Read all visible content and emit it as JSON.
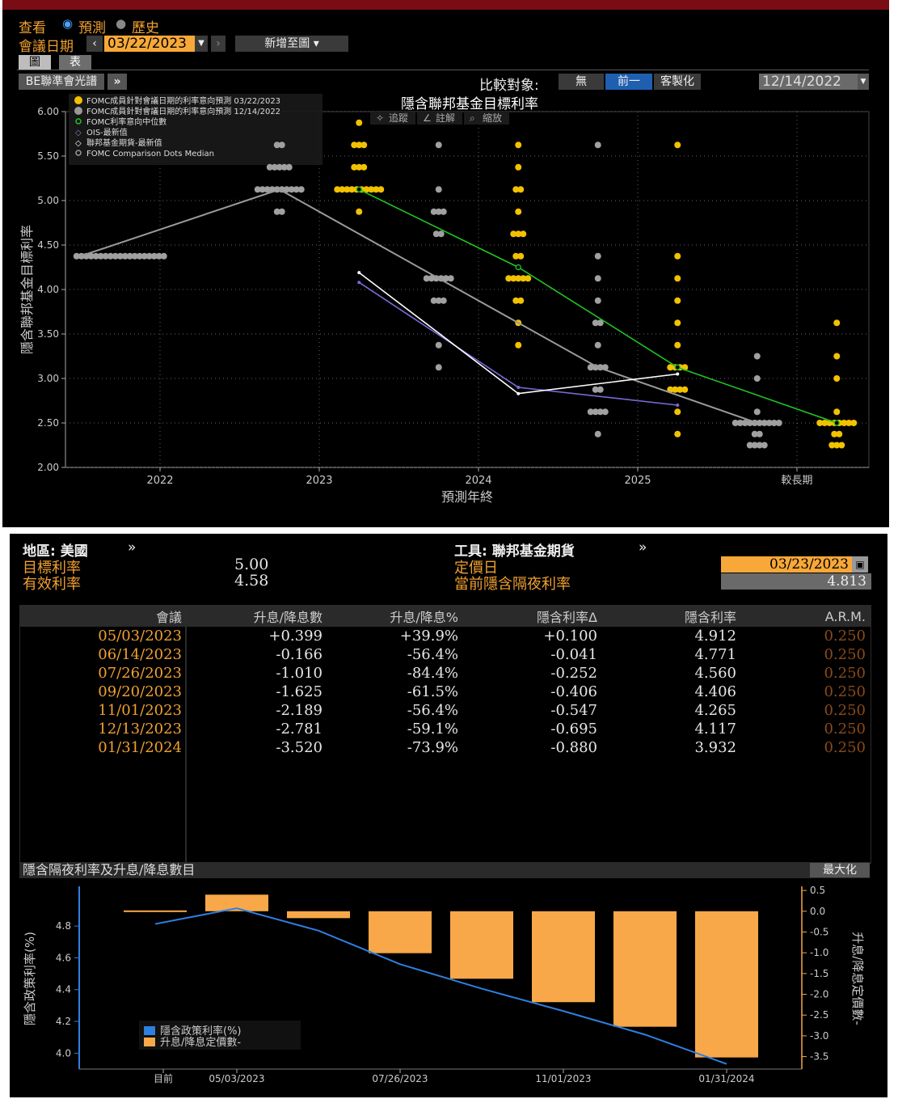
{
  "header": {
    "view_label": "查看",
    "mode_forecast": "預測",
    "mode_history": "歷史",
    "meeting_date_label": "會議日期",
    "meeting_date": "03/22/2023",
    "add_to_chart": "新增至圖",
    "tabs": [
      "圖",
      "表"
    ],
    "source_button": "BE聯準會光譜",
    "compare_label": "比較對象:",
    "compare_options": [
      "無",
      "前一",
      "客製化"
    ],
    "compare_selected": "前一",
    "compare_date": "12/14/2022",
    "toolbar": [
      "追蹤",
      "註解",
      "縮放"
    ]
  },
  "dot_chart": {
    "title": "隱含聯邦基金目標利率",
    "ylabel": "隱含聯邦基金目標利率",
    "xlabel": "預測年終",
    "legend": [
      {
        "label": "FOMC成員針對會議日期的利率意向預測 03/22/2023",
        "color": "#f2c200"
      },
      {
        "label": "FOMC成員針對會議日期的利率意向預測 12/14/2022",
        "color": "#999999"
      },
      {
        "label": "FOMC利率意向中位數",
        "color": "#22c322"
      },
      {
        "label": "OIS-最新值",
        "color": "#8a7ae0"
      },
      {
        "label": "聯邦基金期貨-最新值",
        "color": "#ffffff"
      },
      {
        "label": "FOMC Comparison Dots Median",
        "color": "#999999"
      }
    ]
  },
  "chart_data": [
    {
      "type": "scatter",
      "title": "隱含聯邦基金目標利率",
      "xlabel": "預測年終",
      "ylabel": "隱含聯邦基金目標利率",
      "x_ticks": [
        "2022",
        "2023",
        "2024",
        "2025",
        "較長期"
      ],
      "y_ticks": [
        "2.00",
        "2.50",
        "3.00",
        "3.50",
        "4.00",
        "4.50",
        "5.00",
        "5.50",
        "6.00"
      ],
      "ylim": [
        2.0,
        6.0
      ],
      "dots_03_22_2023": [
        {
          "x": "2023",
          "y": 5.875,
          "count": 1
        },
        {
          "x": "2023",
          "y": 5.625,
          "count": 3
        },
        {
          "x": "2023",
          "y": 5.375,
          "count": 3
        },
        {
          "x": "2023",
          "y": 5.125,
          "count": 10
        },
        {
          "x": "2023",
          "y": 4.875,
          "count": 1
        },
        {
          "x": "2024",
          "y": 5.625,
          "count": 1
        },
        {
          "x": "2024",
          "y": 5.375,
          "count": 1
        },
        {
          "x": "2024",
          "y": 5.125,
          "count": 2
        },
        {
          "x": "2024",
          "y": 4.875,
          "count": 1
        },
        {
          "x": "2024",
          "y": 4.625,
          "count": 3
        },
        {
          "x": "2024",
          "y": 4.375,
          "count": 2
        },
        {
          "x": "2024",
          "y": 4.125,
          "count": 5
        },
        {
          "x": "2024",
          "y": 3.875,
          "count": 2
        },
        {
          "x": "2024",
          "y": 3.625,
          "count": 1
        },
        {
          "x": "2024",
          "y": 3.375,
          "count": 1
        },
        {
          "x": "2025",
          "y": 5.625,
          "count": 1
        },
        {
          "x": "2025",
          "y": 4.375,
          "count": 1
        },
        {
          "x": "2025",
          "y": 4.125,
          "count": 1
        },
        {
          "x": "2025",
          "y": 3.875,
          "count": 1
        },
        {
          "x": "2025",
          "y": 3.625,
          "count": 1
        },
        {
          "x": "2025",
          "y": 3.375,
          "count": 1
        },
        {
          "x": "2025",
          "y": 3.125,
          "count": 4
        },
        {
          "x": "2025",
          "y": 2.875,
          "count": 4
        },
        {
          "x": "2025",
          "y": 2.625,
          "count": 1
        },
        {
          "x": "2025",
          "y": 2.375,
          "count": 1
        },
        {
          "x": "較長期",
          "y": 3.625,
          "count": 1
        },
        {
          "x": "較長期",
          "y": 3.25,
          "count": 1
        },
        {
          "x": "較長期",
          "y": 3.0,
          "count": 1
        },
        {
          "x": "較長期",
          "y": 2.625,
          "count": 1
        },
        {
          "x": "較長期",
          "y": 2.5,
          "count": 8
        },
        {
          "x": "較長期",
          "y": 2.375,
          "count": 2
        },
        {
          "x": "較長期",
          "y": 2.25,
          "count": 3
        }
      ],
      "dots_12_14_2022": [
        {
          "x": "2022",
          "y": 4.375,
          "count": 19
        },
        {
          "x": "2023",
          "y": 5.625,
          "count": 2
        },
        {
          "x": "2023",
          "y": 5.375,
          "count": 5
        },
        {
          "x": "2023",
          "y": 5.125,
          "count": 10
        },
        {
          "x": "2023",
          "y": 4.875,
          "count": 2
        },
        {
          "x": "2024",
          "y": 5.625,
          "count": 1
        },
        {
          "x": "2024",
          "y": 5.125,
          "count": 1
        },
        {
          "x": "2024",
          "y": 4.875,
          "count": 3
        },
        {
          "x": "2024",
          "y": 4.625,
          "count": 2
        },
        {
          "x": "2024",
          "y": 4.125,
          "count": 6
        },
        {
          "x": "2024",
          "y": 3.875,
          "count": 3
        },
        {
          "x": "2024",
          "y": 3.375,
          "count": 1
        },
        {
          "x": "2024",
          "y": 3.125,
          "count": 1
        },
        {
          "x": "2025",
          "y": 5.625,
          "count": 1
        },
        {
          "x": "2025",
          "y": 4.375,
          "count": 1
        },
        {
          "x": "2025",
          "y": 4.125,
          "count": 1
        },
        {
          "x": "2025",
          "y": 3.875,
          "count": 1
        },
        {
          "x": "2025",
          "y": 3.625,
          "count": 2
        },
        {
          "x": "2025",
          "y": 3.375,
          "count": 1
        },
        {
          "x": "2025",
          "y": 3.125,
          "count": 4
        },
        {
          "x": "2025",
          "y": 2.875,
          "count": 2
        },
        {
          "x": "2025",
          "y": 2.625,
          "count": 4
        },
        {
          "x": "2025",
          "y": 2.375,
          "count": 1
        },
        {
          "x": "較長期",
          "y": 3.25,
          "count": 1
        },
        {
          "x": "較長期",
          "y": 3.0,
          "count": 1
        },
        {
          "x": "較長期",
          "y": 2.625,
          "count": 1
        },
        {
          "x": "較長期",
          "y": 2.5,
          "count": 10
        },
        {
          "x": "較長期",
          "y": 2.375,
          "count": 2
        },
        {
          "x": "較長期",
          "y": 2.25,
          "count": 4
        }
      ],
      "series": [
        {
          "name": "FOMC利率意向中位數",
          "points": [
            {
              "x": 2023.25,
              "y": 5.125
            },
            {
              "x": 2024.25,
              "y": 4.25
            },
            {
              "x": 2025.25,
              "y": 3.125
            },
            {
              "x": 2026.25,
              "y": 2.5
            }
          ]
        },
        {
          "name": "FOMC Comparison Dots Median",
          "points": [
            {
              "x": 2021.5,
              "y": 4.375
            },
            {
              "x": 2022.75,
              "y": 5.125
            },
            {
              "x": 2023.75,
              "y": 4.125
            },
            {
              "x": 2024.75,
              "y": 3.125
            },
            {
              "x": 2025.75,
              "y": 2.5
            }
          ]
        },
        {
          "name": "OIS-最新值",
          "points": [
            {
              "x": 2023.25,
              "y": 4.08
            },
            {
              "x": 2024.25,
              "y": 2.9
            },
            {
              "x": 2025.25,
              "y": 2.7
            }
          ]
        },
        {
          "name": "聯邦基金期貨-最新值",
          "points": [
            {
              "x": 2023.25,
              "y": 4.19
            },
            {
              "x": 2024.25,
              "y": 2.83
            },
            {
              "x": 2025.25,
              "y": 3.05
            }
          ]
        }
      ]
    },
    {
      "type": "bar",
      "title": "隱含隔夜利率及升息/降息數目",
      "ylabel": "隱含政策利率(%)",
      "y2label": "升息/降息定價數-",
      "categories": [
        "目前",
        "05/03/2023",
        "06/14/2023",
        "07/26/2023",
        "09/20/2023",
        "11/01/2023",
        "12/13/2023",
        "01/31/2024"
      ],
      "x_tick_labels": [
        "目前",
        "05/03/2023",
        "07/26/2023",
        "11/01/2023",
        "01/31/2024"
      ],
      "series": [
        {
          "name": "隱含政策利率(%)",
          "type": "line",
          "axis": "left",
          "values": [
            4.813,
            4.912,
            4.771,
            4.56,
            4.406,
            4.265,
            4.117,
            3.932
          ]
        },
        {
          "name": "升息/降息定價數-",
          "type": "bar",
          "axis": "right",
          "values": [
            0,
            0.399,
            -0.166,
            -1.01,
            -1.625,
            -2.189,
            -2.781,
            -3.52
          ]
        }
      ],
      "left_ticks": [
        "4.0",
        "4.2",
        "4.4",
        "4.6",
        "4.8"
      ],
      "right_ticks": [
        "0.5",
        "0.0",
        "-0.5",
        "-1.0",
        "-1.5",
        "-2.0",
        "-2.5",
        "-3.0",
        "-3.5"
      ],
      "ylim_left": [
        3.9,
        5.05
      ],
      "ylim_right": [
        -3.8,
        0.6
      ]
    }
  ],
  "info": {
    "region_label": "地區: 美國",
    "instrument_label": "工具: 聯邦基金期貨",
    "target_rate_label": "目標利率",
    "target_rate": "5.00",
    "effective_rate_label": "有效利率",
    "effective_rate": "4.58",
    "pricing_date_label": "定價日",
    "pricing_date": "03/23/2023",
    "overnight_label": "當前隱含隔夜利率",
    "overnight_value": "4.813"
  },
  "table": {
    "headers": [
      "會議",
      "升息/降息數",
      "升息/降息%",
      "隱含利率Δ",
      "隱含利率",
      "A.R.M."
    ],
    "rows": [
      [
        "05/03/2023",
        "+0.399",
        "+39.9%",
        "+0.100",
        "4.912",
        "0.250"
      ],
      [
        "06/14/2023",
        "-0.166",
        "-56.4%",
        "-0.041",
        "4.771",
        "0.250"
      ],
      [
        "07/26/2023",
        "-1.010",
        "-84.4%",
        "-0.252",
        "4.560",
        "0.250"
      ],
      [
        "09/20/2023",
        "-1.625",
        "-61.5%",
        "-0.406",
        "4.406",
        "0.250"
      ],
      [
        "11/01/2023",
        "-2.189",
        "-56.4%",
        "-0.547",
        "4.265",
        "0.250"
      ],
      [
        "12/13/2023",
        "-2.781",
        "-59.1%",
        "-0.695",
        "4.117",
        "0.250"
      ],
      [
        "01/31/2024",
        "-3.520",
        "-73.9%",
        "-0.880",
        "3.932",
        "0.250"
      ]
    ]
  },
  "bar_chart_panel": {
    "title": "隱含隔夜利率及升息/降息數目",
    "maximize": "最大化",
    "legend": [
      {
        "label": "隱含政策利率(%)",
        "color": "#2f7fe0"
      },
      {
        "label": "升息/降息定價數-",
        "color": "#f8a848"
      }
    ]
  }
}
